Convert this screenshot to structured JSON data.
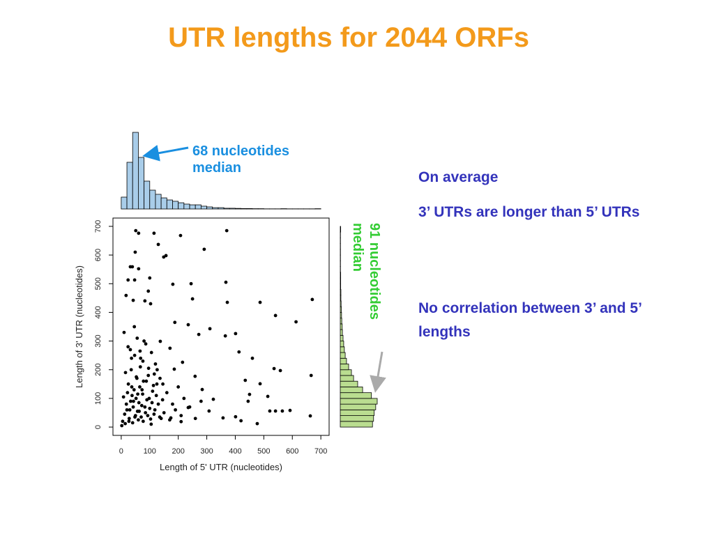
{
  "title": "UTR lengths for 2044 ORFs",
  "notes": [
    "On average",
    "3’ UTRs are longer than 5’ UTRs",
    "No correlation between 3’ and 5’ lengths"
  ],
  "chart_data": [
    {
      "type": "scatter",
      "x_label": "Length of 5' UTR (nucleotides)",
      "y_label": "Length of 3' UTR (nucleotides)",
      "color": "#000000",
      "xlim": [
        -29,
        729
      ],
      "ylim": [
        -29,
        729
      ],
      "xticks": [
        0,
        100,
        200,
        300,
        400,
        500,
        600,
        700
      ],
      "yticks": [
        0,
        100,
        200,
        300,
        400,
        500,
        600,
        700
      ],
      "x": [
        51,
        61,
        115,
        208,
        370,
        130,
        49,
        291,
        157,
        149,
        32,
        39,
        61,
        100,
        24,
        47,
        181,
        245,
        367,
        95,
        17,
        250,
        487,
        670,
        372,
        42,
        83,
        103,
        541,
        613,
        188,
        235,
        311,
        272,
        365,
        401,
        460,
        413,
        536,
        558,
        666,
        435,
        487,
        450,
        514,
        521,
        541,
        565,
        592,
        663,
        445,
        401,
        420,
        477,
        357,
        323,
        284,
        259,
        215,
        171,
        137,
        186,
        235,
        308,
        174,
        210,
        5,
        12,
        18,
        22,
        25,
        28,
        30,
        33,
        35,
        38,
        40,
        42,
        45,
        47,
        50,
        52,
        55,
        57,
        60,
        62,
        65,
        67,
        70,
        72,
        75,
        78,
        80,
        85,
        90,
        95,
        100,
        105,
        110,
        115,
        120,
        125,
        130,
        140,
        8,
        15,
        20,
        27,
        32,
        37,
        43,
        48,
        53,
        58,
        63,
        68,
        73,
        77,
        83,
        88,
        93,
        98,
        103,
        108,
        113,
        118,
        123,
        135,
        145,
        150,
        160,
        170,
        180,
        190,
        200,
        210,
        220,
        240,
        260,
        280,
        10,
        24,
        36,
        46,
        56,
        66,
        76,
        86,
        96,
        106,
        116,
        126,
        136,
        146,
        2,
        14
      ],
      "values": [
        685,
        676,
        676,
        668,
        685,
        637,
        610,
        620,
        598,
        593,
        559,
        559,
        552,
        520,
        513,
        513,
        498,
        500,
        505,
        474,
        459,
        447,
        435,
        445,
        435,
        442,
        440,
        430,
        389,
        367,
        365,
        357,
        343,
        323,
        318,
        326,
        240,
        262,
        204,
        197,
        180,
        163,
        151,
        114,
        107,
        56,
        56,
        56,
        58,
        39,
        90,
        36,
        22,
        12,
        32,
        97,
        131,
        177,
        226,
        275,
        299,
        202,
        68,
        56,
        32,
        19,
        20,
        45,
        80,
        120,
        150,
        30,
        60,
        90,
        200,
        110,
        15,
        70,
        130,
        250,
        40,
        100,
        170,
        55,
        25,
        85,
        140,
        210,
        35,
        75,
        115,
        160,
        300,
        50,
        95,
        180,
        65,
        10,
        125,
        45,
        220,
        150,
        80,
        30,
        105,
        190,
        60,
        20,
        270,
        140,
        90,
        35,
        175,
        115,
        55,
        240,
        130,
        20,
        70,
        160,
        40,
        100,
        28,
        85,
        145,
        60,
        110,
        35,
        95,
        50,
        120,
        25,
        80,
        60,
        140,
        40,
        100,
        70,
        30,
        90,
        330,
        280,
        240,
        350,
        310,
        265,
        230,
        290,
        205,
        260,
        185,
        200,
        170,
        150,
        5,
        12
      ]
    },
    {
      "type": "histogram",
      "orientation": "vertical",
      "color": "#a9cde9",
      "annotation": "68 nucleotides median",
      "annotation_color": "#1a8fe0",
      "xlim": [
        -29,
        729
      ],
      "bins": [
        0,
        20,
        40,
        60,
        80,
        100,
        120,
        140,
        160,
        180,
        200,
        220,
        240,
        260,
        280,
        300,
        320,
        340,
        360,
        380,
        400,
        420,
        440,
        460,
        480,
        500,
        520,
        540,
        560,
        580,
        600,
        620,
        640,
        660,
        680,
        700
      ],
      "values": [
        80,
        315,
        517,
        348,
        188,
        127,
        99,
        75,
        61,
        52,
        42,
        33,
        28,
        28,
        19,
        14,
        9,
        9,
        5,
        5,
        4,
        3,
        3,
        2,
        2,
        1,
        1,
        1,
        2,
        1,
        1,
        1,
        1,
        1,
        2
      ]
    },
    {
      "type": "histogram",
      "orientation": "horizontal",
      "color": "#badd90",
      "annotation": "91 nucleotides median",
      "annotation_color": "#33cc33",
      "ylim": [
        -29,
        729
      ],
      "bins": [
        0,
        20,
        40,
        60,
        80,
        100,
        120,
        140,
        160,
        180,
        200,
        220,
        240,
        260,
        280,
        300,
        320,
        340,
        360,
        380,
        400,
        420,
        440,
        460,
        480,
        500,
        520,
        540,
        560,
        580,
        600,
        620,
        640,
        660,
        680,
        700
      ],
      "values": [
        150,
        155,
        158,
        165,
        172,
        145,
        104,
        81,
        62,
        52,
        39,
        29,
        23,
        19,
        16,
        13,
        10,
        9,
        7,
        6,
        5,
        4,
        3,
        3,
        2,
        2,
        2,
        1,
        1,
        1,
        1,
        1,
        1,
        1,
        2
      ]
    }
  ]
}
